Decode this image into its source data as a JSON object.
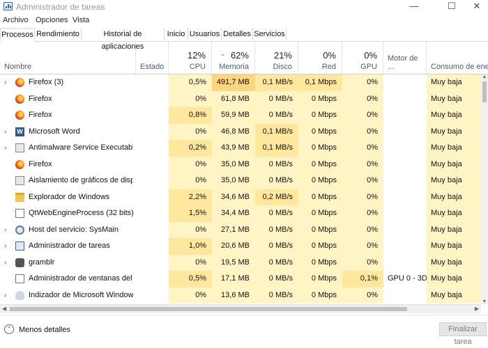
{
  "window": {
    "title": "Administrador de tareas",
    "minimize": "—",
    "maximize": "☐",
    "close": "✕"
  },
  "menu": [
    "Archivo",
    "Opciones",
    "Vista"
  ],
  "tabs": [
    "Procesos",
    "Rendimiento",
    "Historial de aplicaciones",
    "Inicio",
    "Usuarios",
    "Detalles",
    "Servicios"
  ],
  "active_tab": "Procesos",
  "columns": {
    "name": "Nombre",
    "status": "Estado",
    "cpu": {
      "pct": "12%",
      "label": "CPU"
    },
    "memory": {
      "pct": "62%",
      "label": "Memoria"
    },
    "disk": {
      "pct": "21%",
      "label": "Disco"
    },
    "network": {
      "pct": "0%",
      "label": "Red"
    },
    "gpu": {
      "pct": "0%",
      "label": "GPU"
    },
    "gpu_engine": "Motor de ...",
    "power": "Consumo de ener"
  },
  "processes": [
    {
      "name": "Firefox (3)",
      "icon": "firefox-icon",
      "expandable": true,
      "cpu": "0,5%",
      "mem": "491,7 MB",
      "disk": "0,1 MB/s",
      "net": "0,1 Mbps",
      "gpu": "0%",
      "engine": "",
      "power": "Muy baja",
      "heat": {
        "cpu": 1,
        "mem": 3,
        "disk": 2,
        "net": 2,
        "gpu": 1
      }
    },
    {
      "name": "Firefox",
      "icon": "firefox-icon",
      "expandable": false,
      "cpu": "0%",
      "mem": "61,8 MB",
      "disk": "0 MB/s",
      "net": "0 Mbps",
      "gpu": "0%",
      "engine": "",
      "power": "Muy baja",
      "heat": {
        "cpu": 1,
        "mem": 1,
        "disk": 1,
        "net": 1,
        "gpu": 1
      }
    },
    {
      "name": "Firefox",
      "icon": "firefox-icon",
      "expandable": false,
      "cpu": "0,8%",
      "mem": "59,9 MB",
      "disk": "0 MB/s",
      "net": "0 Mbps",
      "gpu": "0%",
      "engine": "",
      "power": "Muy baja",
      "heat": {
        "cpu": 2,
        "mem": 1,
        "disk": 1,
        "net": 1,
        "gpu": 1
      }
    },
    {
      "name": "Microsoft Word",
      "icon": "word-icon",
      "expandable": true,
      "cpu": "0%",
      "mem": "46,8 MB",
      "disk": "0,1 MB/s",
      "net": "0 Mbps",
      "gpu": "0%",
      "engine": "",
      "power": "Muy baja",
      "heat": {
        "cpu": 1,
        "mem": 1,
        "disk": 2,
        "net": 1,
        "gpu": 1
      }
    },
    {
      "name": "Antimalware Service Executable",
      "icon": "shield-icon",
      "expandable": true,
      "cpu": "0,2%",
      "mem": "43,9 MB",
      "disk": "0,1 MB/s",
      "net": "0 Mbps",
      "gpu": "0%",
      "engine": "",
      "power": "Muy baja",
      "heat": {
        "cpu": 2,
        "mem": 1,
        "disk": 2,
        "net": 1,
        "gpu": 1
      }
    },
    {
      "name": "Firefox",
      "icon": "firefox-icon",
      "expandable": false,
      "cpu": "0%",
      "mem": "35,0 MB",
      "disk": "0 MB/s",
      "net": "0 Mbps",
      "gpu": "0%",
      "engine": "",
      "power": "Muy baja",
      "heat": {
        "cpu": 1,
        "mem": 1,
        "disk": 1,
        "net": 1,
        "gpu": 1
      }
    },
    {
      "name": "Aislamiento de gráficos de disp...",
      "icon": "graphics-isolation-icon",
      "expandable": false,
      "cpu": "0%",
      "mem": "35,0 MB",
      "disk": "0 MB/s",
      "net": "0 Mbps",
      "gpu": "0%",
      "engine": "",
      "power": "Muy baja",
      "heat": {
        "cpu": 1,
        "mem": 1,
        "disk": 1,
        "net": 1,
        "gpu": 1
      }
    },
    {
      "name": "Explorador de Windows",
      "icon": "explorer-folder-icon",
      "expandable": false,
      "cpu": "2,2%",
      "mem": "34,6 MB",
      "disk": "0,2 MB/s",
      "net": "0 Mbps",
      "gpu": "0%",
      "engine": "",
      "power": "Muy baja",
      "heat": {
        "cpu": 2,
        "mem": 1,
        "disk": 2,
        "net": 1,
        "gpu": 1
      }
    },
    {
      "name": "QtWebEngineProcess (32 bits)",
      "icon": "qt-window-icon",
      "expandable": false,
      "cpu": "1,5%",
      "mem": "34,4 MB",
      "disk": "0 MB/s",
      "net": "0 Mbps",
      "gpu": "0%",
      "engine": "",
      "power": "Muy baja",
      "heat": {
        "cpu": 2,
        "mem": 1,
        "disk": 1,
        "net": 1,
        "gpu": 1
      }
    },
    {
      "name": "Host del servicio: SysMain",
      "icon": "gear-icon",
      "expandable": true,
      "cpu": "0%",
      "mem": "27,1 MB",
      "disk": "0 MB/s",
      "net": "0 Mbps",
      "gpu": "0%",
      "engine": "",
      "power": "Muy baja",
      "heat": {
        "cpu": 1,
        "mem": 1,
        "disk": 1,
        "net": 1,
        "gpu": 1
      }
    },
    {
      "name": "Administrador de tareas",
      "icon": "task-manager-icon",
      "expandable": true,
      "cpu": "1,0%",
      "mem": "20,6 MB",
      "disk": "0 MB/s",
      "net": "0 Mbps",
      "gpu": "0%",
      "engine": "",
      "power": "Muy baja",
      "heat": {
        "cpu": 2,
        "mem": 1,
        "disk": 1,
        "net": 1,
        "gpu": 1
      }
    },
    {
      "name": "gramblr",
      "icon": "gramblr-icon",
      "expandable": true,
      "cpu": "0%",
      "mem": "19,5 MB",
      "disk": "0 MB/s",
      "net": "0 Mbps",
      "gpu": "0%",
      "engine": "",
      "power": "Muy baja",
      "heat": {
        "cpu": 1,
        "mem": 1,
        "disk": 1,
        "net": 1,
        "gpu": 1
      }
    },
    {
      "name": "Administrador de ventanas del ...",
      "icon": "window-manager-icon",
      "expandable": false,
      "cpu": "0,5%",
      "mem": "17,1 MB",
      "disk": "0 MB/s",
      "net": "0 Mbps",
      "gpu": "0,1%",
      "engine": "GPU 0 - 3D",
      "power": "Muy baja",
      "heat": {
        "cpu": 2,
        "mem": 1,
        "disk": 1,
        "net": 1,
        "gpu": 2
      }
    },
    {
      "name": "Indizador de Microsoft Window...",
      "icon": "indexer-person-icon",
      "expandable": true,
      "cpu": "0%",
      "mem": "13,6 MB",
      "disk": "0 MB/s",
      "net": "0 Mbps",
      "gpu": "0%",
      "engine": "",
      "power": "Muy baja",
      "heat": {
        "cpu": 1,
        "mem": 1,
        "disk": 1,
        "net": 1,
        "gpu": 1
      }
    }
  ],
  "footer": {
    "fewer_details": "Menos detalles",
    "end_task": "Finalizar tarea"
  }
}
